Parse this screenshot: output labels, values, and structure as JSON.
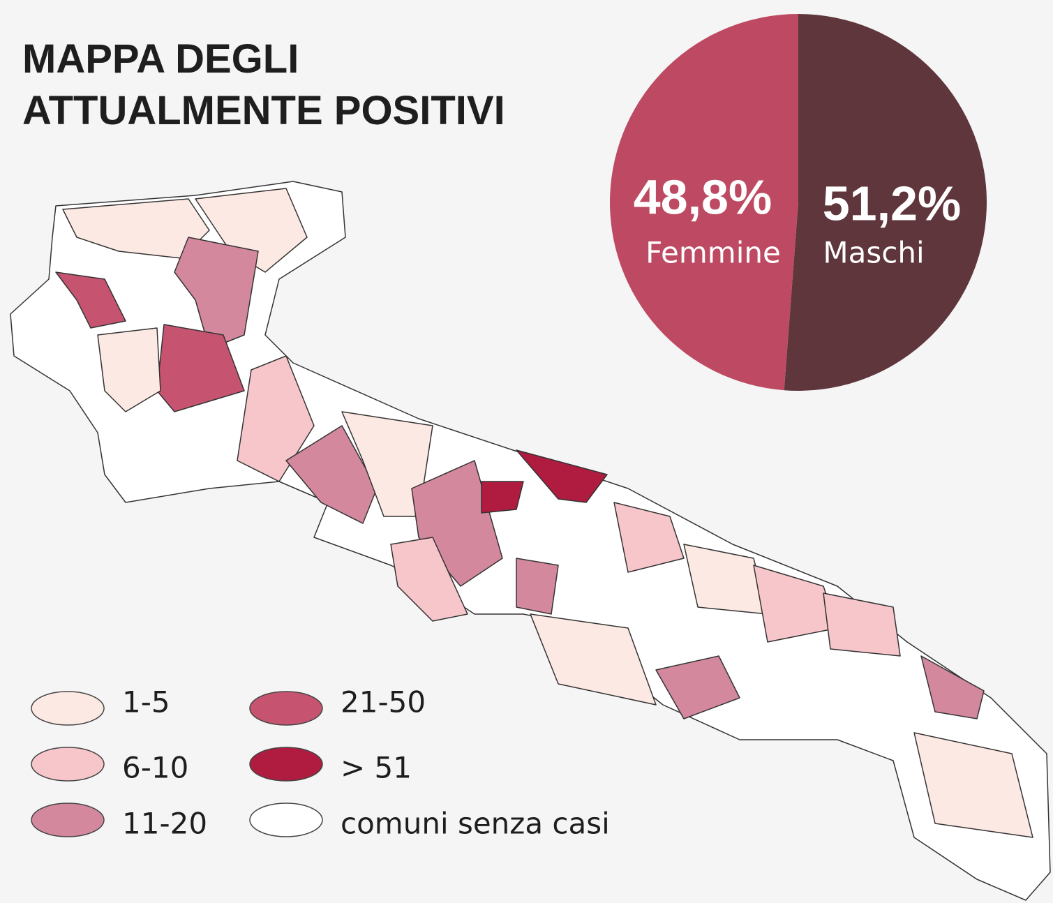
{
  "title": "MAPPA DEGLI ATTUALMENTE POSITIVI",
  "chart_data": {
    "type": "pie",
    "categories": [
      "Femmine",
      "Maschi"
    ],
    "values": [
      48.8,
      51.2
    ],
    "value_labels": [
      "48,8%",
      "51,2%"
    ],
    "colors": [
      "#bd4a62",
      "#5e363c"
    ]
  },
  "legend": [
    {
      "label": "1-5",
      "color": "#fde9e3"
    },
    {
      "label": "6-10",
      "color": "#f6c6ca"
    },
    {
      "label": "11-20",
      "color": "#d4889e"
    },
    {
      "label": "21-50",
      "color": "#c65470"
    },
    {
      "label": "> 51",
      "color": "#b01c40"
    },
    {
      "label": "comuni senza casi",
      "color": "#ffffff"
    }
  ]
}
